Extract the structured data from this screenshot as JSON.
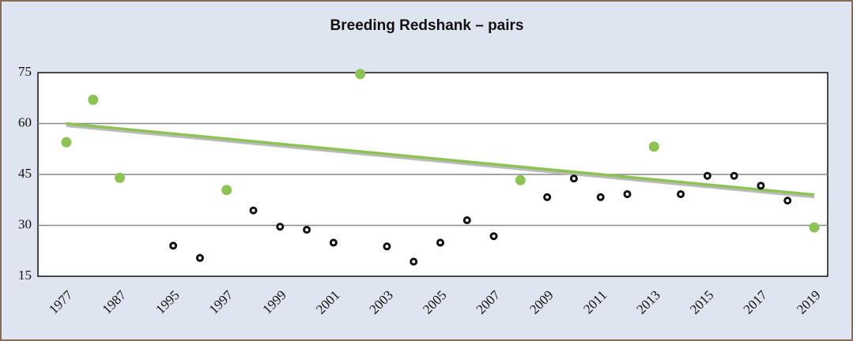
{
  "chart_data": {
    "type": "scatter",
    "title": "Breeding Redshank – pairs",
    "categories": [
      "1977",
      null,
      "1987",
      null,
      "1995",
      null,
      "1997",
      null,
      "1999",
      null,
      "2001",
      null,
      "2003",
      null,
      "2005",
      null,
      "2007",
      null,
      "2009",
      null,
      "2011",
      null,
      "2013",
      null,
      "2015",
      null,
      "2017",
      null,
      "2019"
    ],
    "values": [
      54.5,
      67,
      44,
      null,
      24,
      20.4,
      40.4,
      34.4,
      29.6,
      28.7,
      24.9,
      74.6,
      23.8,
      19.3,
      24.9,
      31.5,
      26.8,
      43.3,
      38.3,
      43.8,
      38.3,
      39.2,
      53.2,
      39.2,
      44.6,
      44.6,
      41.7,
      37.3,
      29.4
    ],
    "point_colors": [
      "#8dc255",
      "#8dc255",
      "#8dc255",
      "#8dc255",
      "#111111",
      "#111111",
      "#8dc255",
      "#111111",
      "#111111",
      "#111111",
      "#111111",
      "#8dc255",
      "#111111",
      "#111111",
      "#111111",
      "#111111",
      "#111111",
      "#8dc255",
      "#111111",
      "#111111",
      "#111111",
      "#111111",
      "#8dc255",
      "#111111",
      "#111111",
      "#111111",
      "#111111",
      "#111111",
      "#8dc255"
    ],
    "trend": {
      "values": [
        60,
        39
      ],
      "color": "#8dc255"
    },
    "ylim": [
      15,
      75
    ],
    "yticks": [
      15,
      30,
      45,
      60,
      75
    ],
    "grid": true
  }
}
